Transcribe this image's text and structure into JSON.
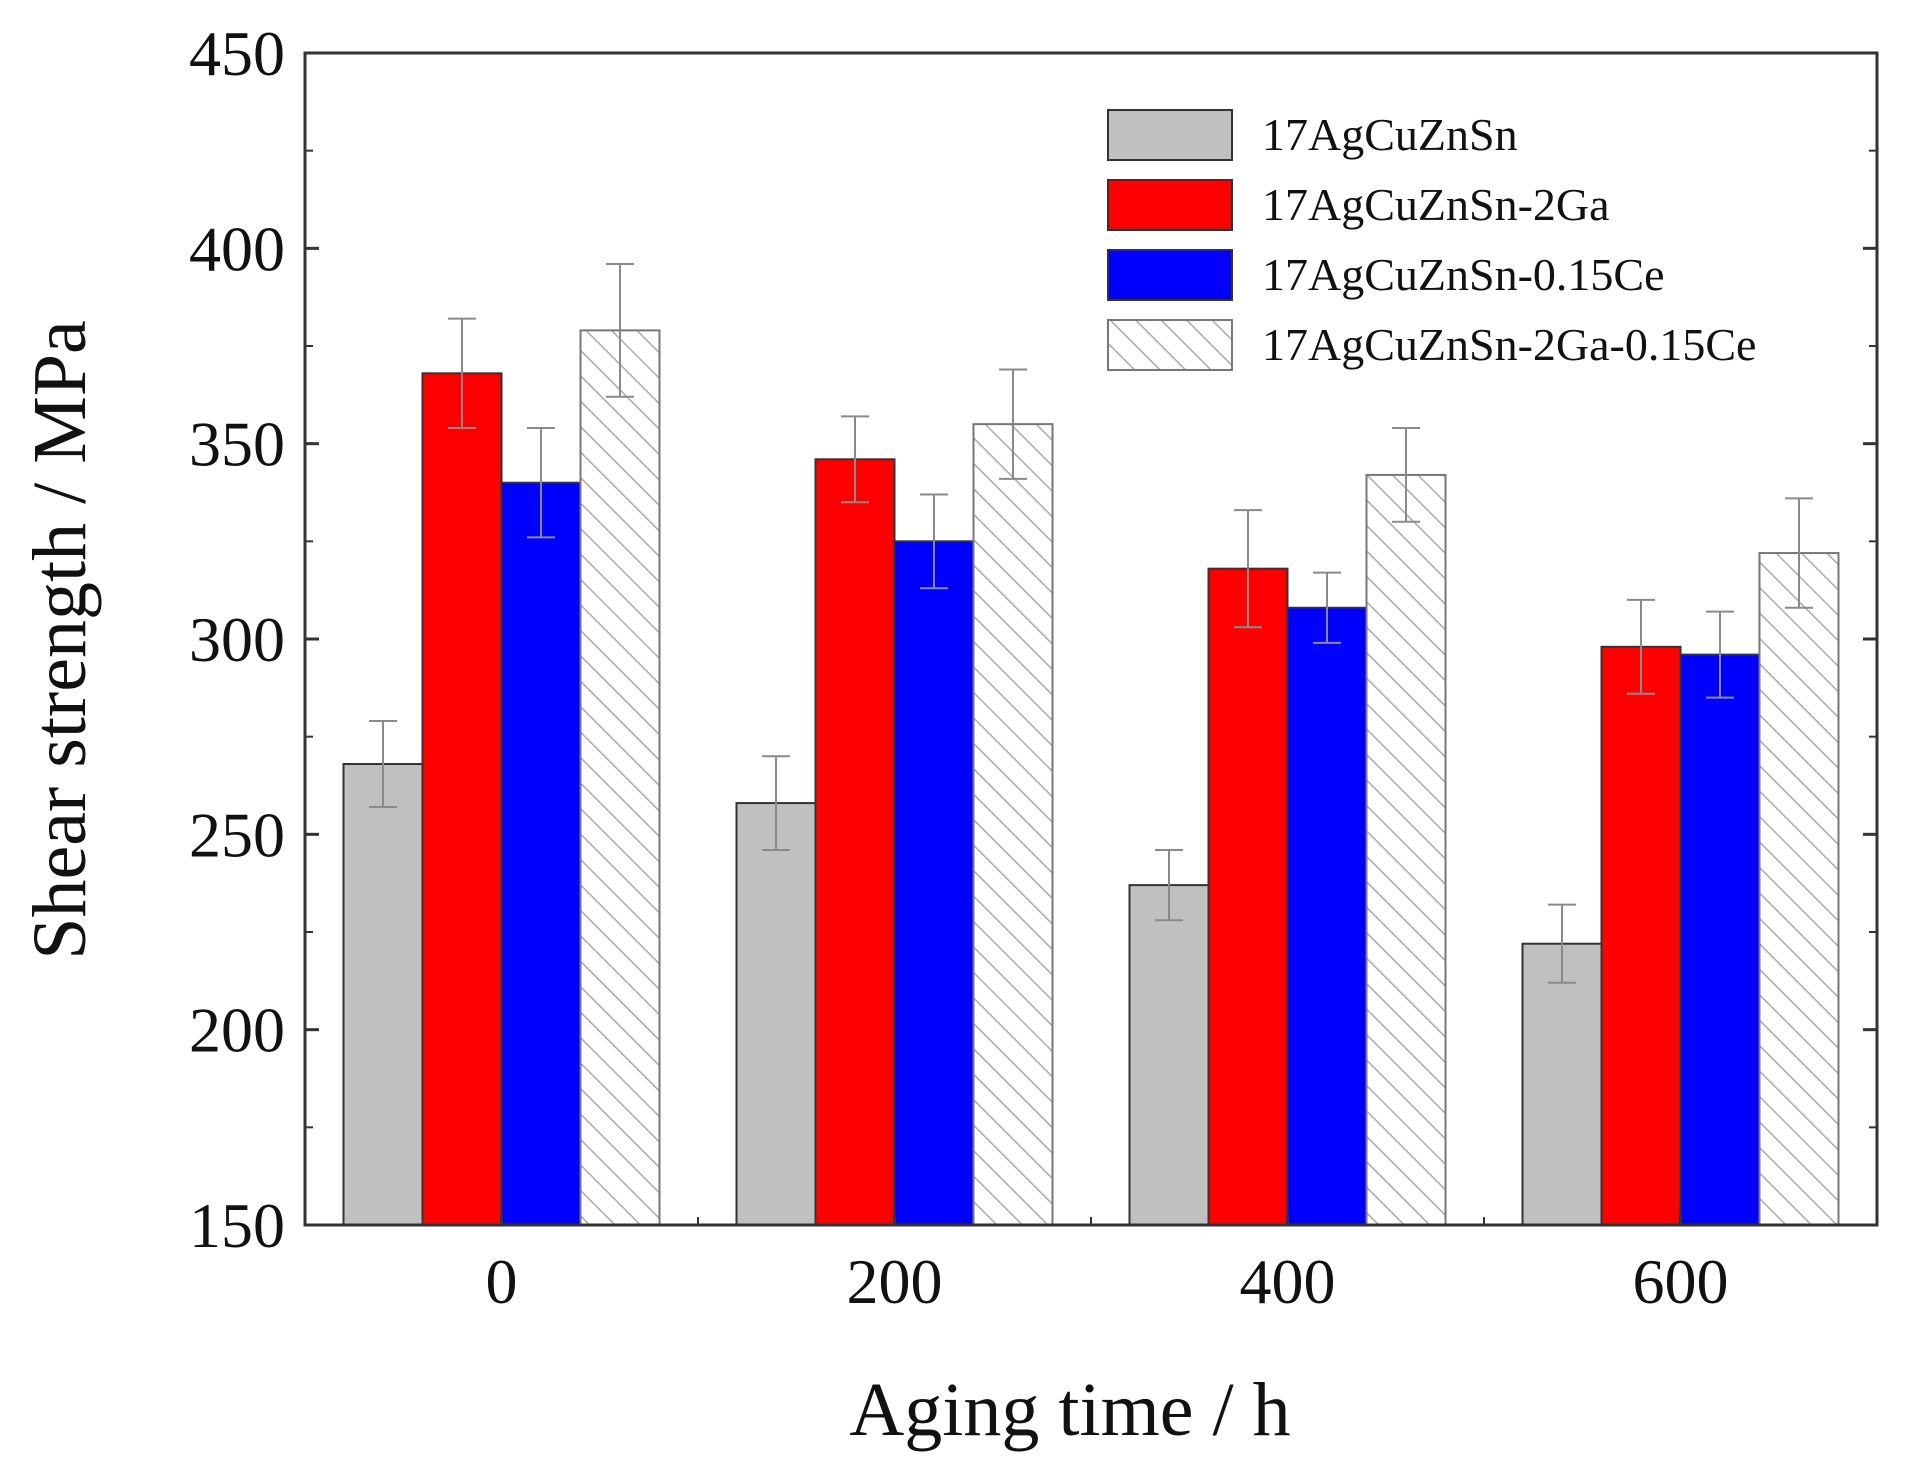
{
  "chart_data": {
    "type": "bar",
    "title": "",
    "xlabel": "Aging time / h",
    "ylabel": "Shear strength / MPa",
    "categories": [
      "0",
      "200",
      "400",
      "600"
    ],
    "ylim": [
      150,
      450
    ],
    "yticks": [
      "150",
      "200",
      "250",
      "300",
      "350",
      "400",
      "450"
    ],
    "grid": false,
    "legend_position": "top-right",
    "series": [
      {
        "name": "17AgCuZnSn",
        "fill": "#c0c0c0",
        "pattern": "solid",
        "values": [
          268,
          258,
          237,
          222
        ],
        "errors": [
          11,
          12,
          9,
          10
        ]
      },
      {
        "name": "17AgCuZnSn-2Ga",
        "fill": "#ff0000",
        "pattern": "solid",
        "values": [
          368,
          346,
          318,
          298
        ],
        "errors": [
          14,
          11,
          15,
          12
        ]
      },
      {
        "name": "17AgCuZnSn-0.15Ce",
        "fill": "#0000ff",
        "pattern": "solid",
        "values": [
          340,
          325,
          308,
          296
        ],
        "errors": [
          14,
          12,
          9,
          11
        ]
      },
      {
        "name": "17AgCuZnSn-2Ga-0.15Ce",
        "fill": "#ffffff",
        "pattern": "hatch",
        "values": [
          379,
          355,
          342,
          322
        ],
        "errors": [
          17,
          14,
          12,
          14
        ]
      }
    ]
  }
}
